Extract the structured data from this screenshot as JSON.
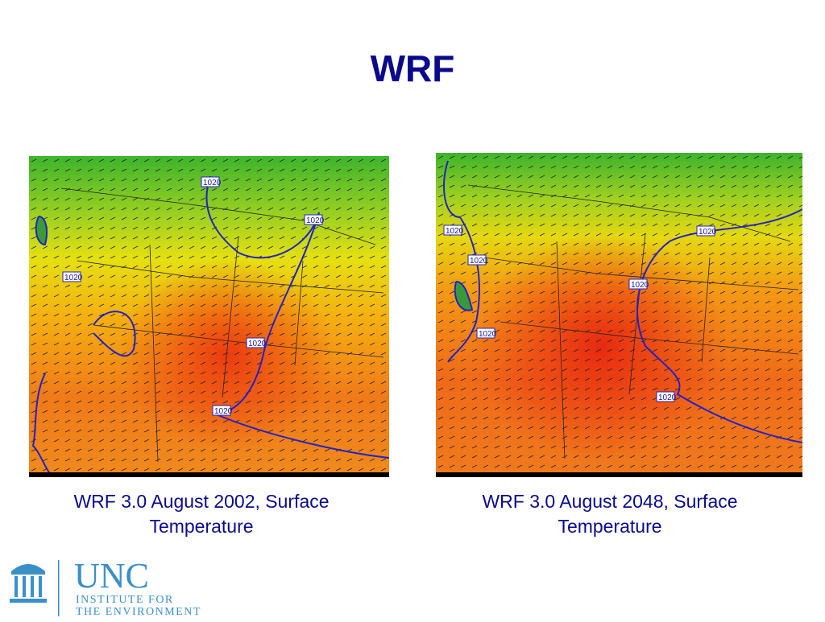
{
  "slide": {
    "title": "WRF",
    "maps": [
      {
        "caption_line1": "WRF 3.0 August 2002, Surface",
        "caption_line2": "Temperature",
        "isobar_labels": [
          "1020",
          "1020",
          "1020",
          "1020",
          "1020"
        ]
      },
      {
        "caption_line1": "WRF 3.0 August 2048, Surface",
        "caption_line2": "Temperature",
        "isobar_labels": [
          "1020",
          "1020",
          "1020",
          "1020",
          "1020",
          "1020"
        ]
      }
    ],
    "colors": {
      "title": "#0a0a8c",
      "isobar": "#2222c8",
      "logo": "#3a8fc8"
    }
  },
  "logo": {
    "name": "UNC",
    "line1": "INSTITUTE FOR",
    "line2": "THE ENVIRONMENT"
  }
}
